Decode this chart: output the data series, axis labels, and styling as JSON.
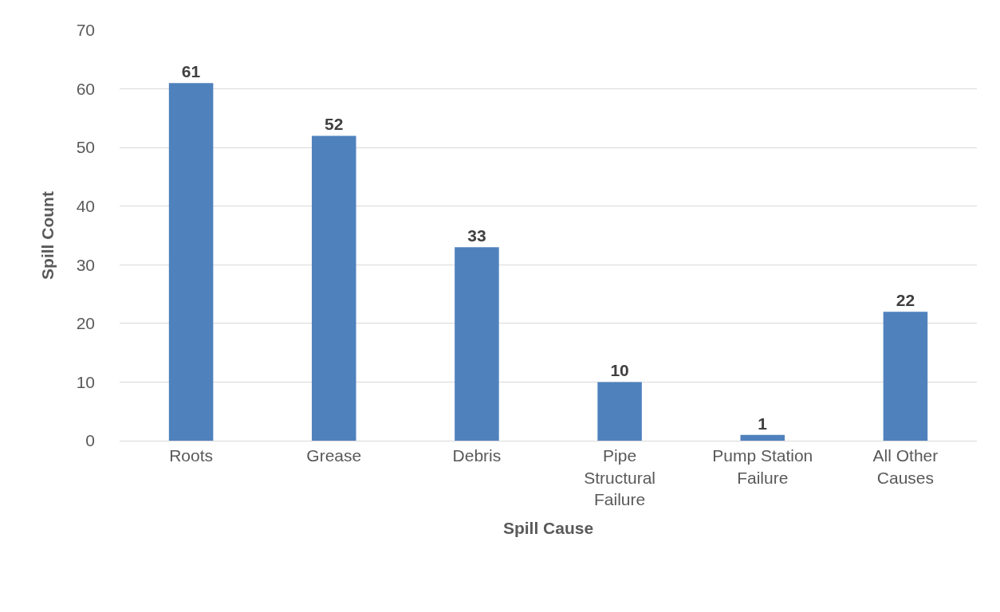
{
  "chart_data": {
    "type": "bar",
    "xlabel": "Spill Cause",
    "ylabel": "Spill Count",
    "categories": [
      "Roots",
      "Grease",
      "Debris",
      "Pipe Structural Failure",
      "Pump Station Failure",
      "All Other Causes"
    ],
    "values": [
      61,
      52,
      33,
      10,
      1,
      22
    ],
    "color": "#4f81bd",
    "ylim": [
      0,
      70
    ],
    "yticks": [
      0,
      10,
      20,
      30,
      40,
      50,
      60,
      70
    ],
    "grid": "y",
    "data_labels": true
  }
}
